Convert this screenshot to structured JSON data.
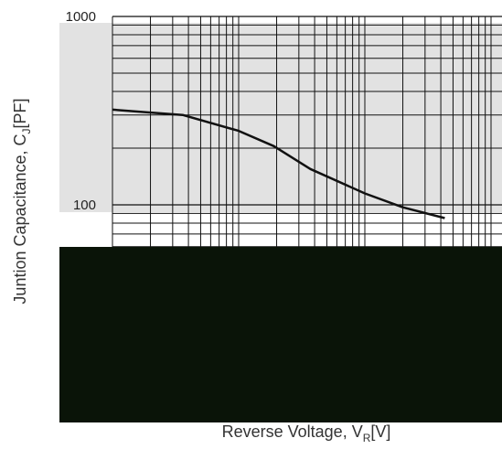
{
  "chart_data": {
    "type": "line",
    "y_label": {
      "text": "Juntion Capacitance, C",
      "subscript": "J",
      "suffix": "[PF]"
    },
    "x_label": {
      "text": "Reverse Voltage, V",
      "subscript": "R",
      "suffix": "[V]"
    },
    "x": [
      0.1,
      0.36,
      1,
      1.9,
      3.7,
      10,
      20,
      43
    ],
    "values": [
      320,
      300,
      247,
      205,
      155,
      115,
      97,
      85
    ],
    "color": "#111111",
    "log_x": true,
    "log_y": true,
    "xlim": [
      0.1,
      100
    ],
    "ylim": [
      10,
      1000
    ],
    "yticks": [
      100,
      1000
    ],
    "yminor": [
      20,
      30,
      40,
      50,
      60,
      70,
      80,
      90,
      200,
      300,
      400,
      500,
      600,
      700,
      800,
      900
    ],
    "xgrid": [
      0.1,
      0.2,
      0.3,
      0.4,
      0.5,
      0.6,
      0.7,
      0.8,
      0.9,
      1,
      2,
      3,
      4,
      5,
      6,
      7,
      8,
      9,
      10,
      20,
      30,
      40,
      50,
      60,
      70,
      80,
      90,
      100
    ],
    "grid": true
  }
}
